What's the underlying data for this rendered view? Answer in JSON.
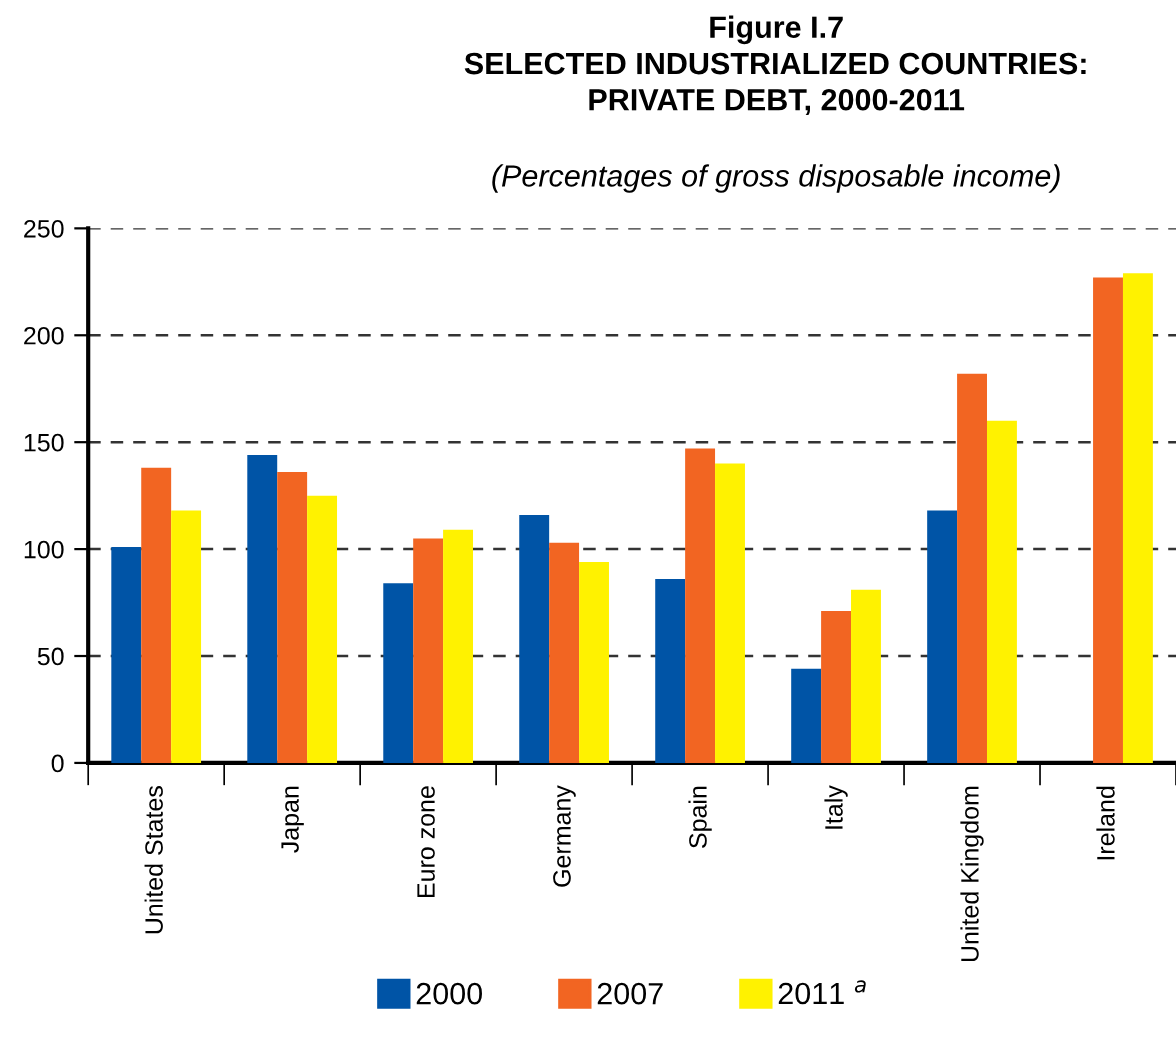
{
  "chart_data": {
    "type": "bar",
    "title": "Figure I.7\nSELECTED INDUSTRIALIZED COUNTRIES:\nPRIVATE DEBT, 2000-2011",
    "subtitle": "(Percentages of gross disposable income)",
    "categories": [
      "United States",
      "Japan",
      "Euro zone",
      "Germany",
      "Spain",
      "Italy",
      "United Kingdom",
      "Ireland"
    ],
    "series": [
      {
        "name": "2000",
        "color": "#0054a6",
        "values": [
          101,
          144,
          84,
          116,
          86,
          44,
          118,
          null
        ]
      },
      {
        "name": "2007",
        "color": "#f26522",
        "values": [
          138,
          136,
          105,
          103,
          147,
          71,
          182,
          227
        ]
      },
      {
        "name": "2011 $^{a}$",
        "color": "#fff200",
        "values": [
          118,
          125,
          109,
          94,
          140,
          81,
          160,
          229
        ]
      }
    ],
    "ylim": [
      0,
      250
    ],
    "yticks": [
      0,
      50,
      100,
      150,
      200,
      250
    ],
    "grid": "y",
    "legend": "bottom"
  }
}
